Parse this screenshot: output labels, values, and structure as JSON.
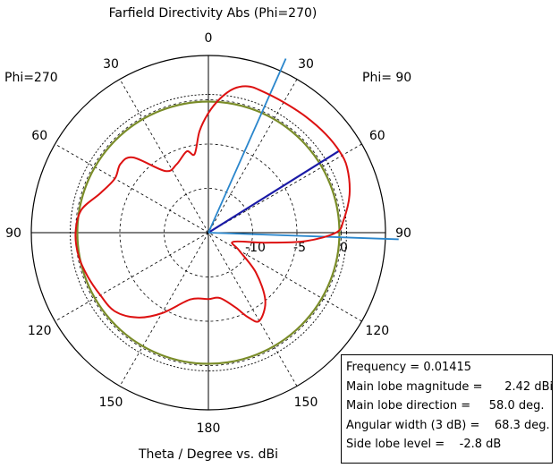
{
  "chart_data": {
    "type": "polar",
    "title": "Farfield Directivity Abs (Phi=270)",
    "xlabel": "Theta / Degree vs. dBi",
    "left_half_label": "Phi=270",
    "right_half_label": "Phi= 90",
    "angle_tick_labels": [
      "0",
      "30",
      "60",
      "90",
      "120",
      "150",
      "180",
      "150",
      "120",
      "90",
      "60",
      "30"
    ],
    "radial_tick_labels": [
      "-10",
      "-5",
      "0"
    ],
    "radial_range_dBi": [
      -15,
      5
    ],
    "radial_grid_dBi": [
      -10,
      -5,
      0
    ],
    "grid": true,
    "series": [
      {
        "name": "",
        "color": "#dd1111",
        "theta_deg": [
          -180,
          -165,
          -150,
          -140,
          -130,
          -120,
          -110,
          -100,
          -90,
          -80,
          -70,
          -60,
          -52,
          -45,
          -35,
          -25,
          -15,
          -10,
          -5,
          0,
          5,
          10,
          15,
          20,
          30,
          40,
          50,
          58,
          65,
          75,
          85,
          90,
          95,
          100,
          110,
          120,
          130,
          140,
          150,
          155,
          160,
          170,
          180
        ],
        "r_dBi": [
          -7.5,
          -7.2,
          -4.5,
          -2.5,
          -1.2,
          -0.9,
          -0.5,
          -0.1,
          0.0,
          -0.4,
          -2.0,
          -2.8,
          -2.4,
          -3.0,
          -6.5,
          -6.5,
          -5.5,
          -6.0,
          -3.5,
          -1.5,
          0.2,
          1.5,
          2.1,
          2.1,
          2.0,
          2.1,
          2.3,
          2.42,
          2.3,
          1.5,
          0.3,
          -0.6,
          -4.0,
          -8.5,
          -12.0,
          -11.0,
          -8.0,
          -5.0,
          -3.5,
          -4.5,
          -6.0,
          -7.5,
          -7.5
        ]
      }
    ],
    "reference_circles": [
      {
        "name": "",
        "color": "#7a8c28",
        "r_dBi": -0.2
      },
      {
        "name": "",
        "color": "#000000",
        "r_dBi": 0.6,
        "dashed": true
      }
    ],
    "markers": [
      {
        "name": "main lobe direction",
        "color": "#1a1aa6",
        "theta_deg": 58,
        "r_dBi": 2.42
      },
      {
        "name": "3 dB beamwidth",
        "color": "#2a86cc",
        "theta_deg": 24,
        "r_dBi": 6.5
      },
      {
        "name": "3 dB beamwidth",
        "color": "#2a86cc",
        "theta_deg": 92,
        "r_dBi": 6.5
      }
    ]
  },
  "info": {
    "frequency": "Frequency = 0.01415",
    "magnitude": "Main lobe magnitude =      2.42 dBi",
    "direction": "Main lobe direction =     58.0 deg.",
    "width": "Angular width (3 dB) =    68.3 deg.",
    "side_lobe": "Side lobe level =    -2.8 dB"
  }
}
